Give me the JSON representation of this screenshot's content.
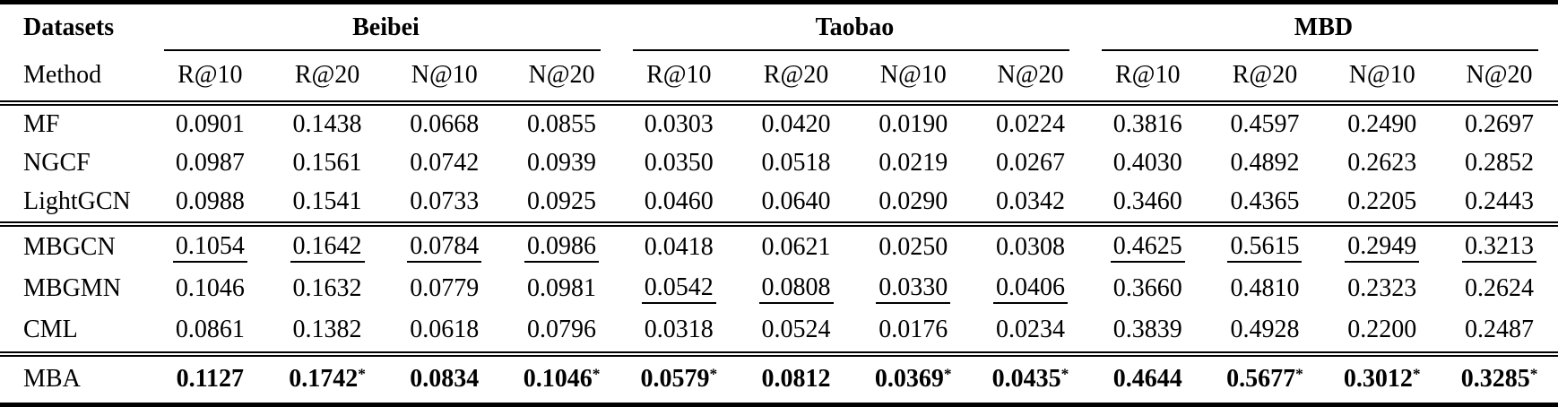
{
  "colors": {
    "text": "#000000",
    "background": "#ffffff",
    "rule": "#000000"
  },
  "table": {
    "corner_title": "Datasets",
    "corner_subtitle": "Method",
    "groups": [
      {
        "label": "Beibei"
      },
      {
        "label": "Taobao"
      },
      {
        "label": "MBD"
      }
    ],
    "metric_labels": [
      "R@10",
      "R@20",
      "N@10",
      "N@20"
    ],
    "rows": [
      {
        "method": "MF",
        "section": 0,
        "cells": [
          {
            "v": "0.0901"
          },
          {
            "v": "0.1438"
          },
          {
            "v": "0.0668"
          },
          {
            "v": "0.0855"
          },
          {
            "v": "0.0303"
          },
          {
            "v": "0.0420"
          },
          {
            "v": "0.0190"
          },
          {
            "v": "0.0224"
          },
          {
            "v": "0.3816"
          },
          {
            "v": "0.4597"
          },
          {
            "v": "0.2490"
          },
          {
            "v": "0.2697"
          }
        ]
      },
      {
        "method": "NGCF",
        "section": 0,
        "cells": [
          {
            "v": "0.0987"
          },
          {
            "v": "0.1561"
          },
          {
            "v": "0.0742"
          },
          {
            "v": "0.0939"
          },
          {
            "v": "0.0350"
          },
          {
            "v": "0.0518"
          },
          {
            "v": "0.0219"
          },
          {
            "v": "0.0267"
          },
          {
            "v": "0.4030"
          },
          {
            "v": "0.4892"
          },
          {
            "v": "0.2623"
          },
          {
            "v": "0.2852"
          }
        ]
      },
      {
        "method": "LightGCN",
        "section": 0,
        "cells": [
          {
            "v": "0.0988"
          },
          {
            "v": "0.1541"
          },
          {
            "v": "0.0733"
          },
          {
            "v": "0.0925"
          },
          {
            "v": "0.0460"
          },
          {
            "v": "0.0640"
          },
          {
            "v": "0.0290"
          },
          {
            "v": "0.0342"
          },
          {
            "v": "0.3460"
          },
          {
            "v": "0.4365"
          },
          {
            "v": "0.2205"
          },
          {
            "v": "0.2443"
          }
        ]
      },
      {
        "method": "MBGCN",
        "section": 1,
        "cells": [
          {
            "v": "0.1054",
            "u": true
          },
          {
            "v": "0.1642",
            "u": true
          },
          {
            "v": "0.0784",
            "u": true
          },
          {
            "v": "0.0986",
            "u": true
          },
          {
            "v": "0.0418"
          },
          {
            "v": "0.0621"
          },
          {
            "v": "0.0250"
          },
          {
            "v": "0.0308"
          },
          {
            "v": "0.4625",
            "u": true
          },
          {
            "v": "0.5615",
            "u": true
          },
          {
            "v": "0.2949",
            "u": true
          },
          {
            "v": "0.3213",
            "u": true
          }
        ]
      },
      {
        "method": "MBGMN",
        "section": 1,
        "cells": [
          {
            "v": "0.1046"
          },
          {
            "v": "0.1632"
          },
          {
            "v": "0.0779"
          },
          {
            "v": "0.0981"
          },
          {
            "v": "0.0542",
            "u": true
          },
          {
            "v": "0.0808",
            "u": true
          },
          {
            "v": "0.0330",
            "u": true
          },
          {
            "v": "0.0406",
            "u": true
          },
          {
            "v": "0.3660"
          },
          {
            "v": "0.4810"
          },
          {
            "v": "0.2323"
          },
          {
            "v": "0.2624"
          }
        ]
      },
      {
        "method": "CML",
        "section": 1,
        "cells": [
          {
            "v": "0.0861"
          },
          {
            "v": "0.1382"
          },
          {
            "v": "0.0618"
          },
          {
            "v": "0.0796"
          },
          {
            "v": "0.0318"
          },
          {
            "v": "0.0524"
          },
          {
            "v": "0.0176"
          },
          {
            "v": "0.0234"
          },
          {
            "v": "0.3839"
          },
          {
            "v": "0.4928"
          },
          {
            "v": "0.2200"
          },
          {
            "v": "0.2487"
          }
        ]
      },
      {
        "method": "MBA",
        "section": 2,
        "cells": [
          {
            "v": "0.1127",
            "b": true
          },
          {
            "v": "0.1742",
            "b": true,
            "s": true
          },
          {
            "v": "0.0834",
            "b": true
          },
          {
            "v": "0.1046",
            "b": true,
            "s": true
          },
          {
            "v": "0.0579",
            "b": true,
            "s": true
          },
          {
            "v": "0.0812",
            "b": true
          },
          {
            "v": "0.0369",
            "b": true,
            "s": true
          },
          {
            "v": "0.0435",
            "b": true,
            "s": true
          },
          {
            "v": "0.4644",
            "b": true
          },
          {
            "v": "0.5677",
            "b": true,
            "s": true
          },
          {
            "v": "0.3012",
            "b": true,
            "s": true
          },
          {
            "v": "0.3285",
            "b": true,
            "s": true
          }
        ]
      }
    ]
  }
}
